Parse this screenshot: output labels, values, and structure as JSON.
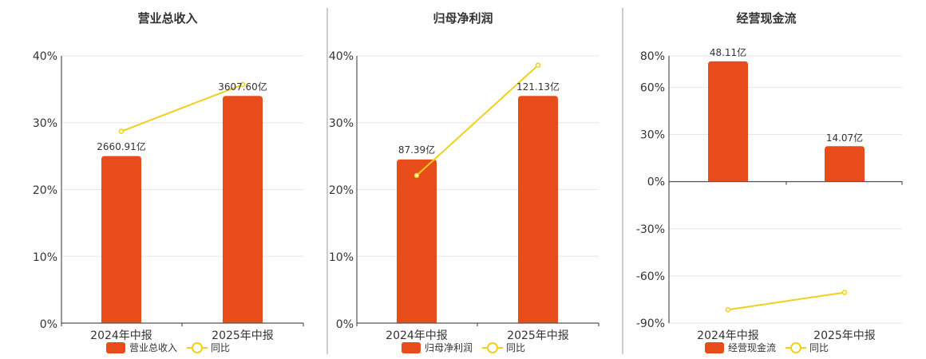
{
  "colors": {
    "bar": "#e84c1a",
    "line": "#f0d01c"
  },
  "chart_data": [
    {
      "type": "bar",
      "title": "营业总收入",
      "categories": [
        "2024年中报",
        "2025年中报"
      ],
      "series": [
        {
          "name": "营业总收入",
          "type": "bar",
          "values": [
            25.0,
            34.0
          ],
          "labels": [
            "2660.91亿",
            "3607.60亿"
          ]
        },
        {
          "name": "同比",
          "type": "line",
          "values": [
            28.7,
            35.7
          ]
        }
      ],
      "yticks": [
        "40%",
        "30%",
        "20%",
        "10%",
        "0%"
      ],
      "ylim": [
        0,
        40
      ]
    },
    {
      "type": "bar",
      "title": "归母净利润",
      "categories": [
        "2024年中报",
        "2025年中报"
      ],
      "series": [
        {
          "name": "归母净利润",
          "type": "bar",
          "values": [
            24.5,
            34.0
          ],
          "labels": [
            "87.39亿",
            "121.13亿"
          ]
        },
        {
          "name": "同比",
          "type": "line",
          "values": [
            22.1,
            38.6
          ]
        }
      ],
      "yticks": [
        "40%",
        "30%",
        "20%",
        "10%",
        "0%"
      ],
      "ylim": [
        0,
        40
      ]
    },
    {
      "type": "bar",
      "title": "经营现金流",
      "categories": [
        "2024年中报",
        "2025年中报"
      ],
      "series": [
        {
          "name": "经营现金流",
          "type": "bar",
          "values": [
            76.5,
            22.5
          ],
          "labels": [
            "48.11亿",
            "14.07亿"
          ]
        },
        {
          "name": "同比",
          "type": "line",
          "values": [
            -81.5,
            -70.5
          ]
        }
      ],
      "yticks": [
        "80%",
        "60%",
        "30%",
        "0%",
        "-30%",
        "-60%",
        "-90%"
      ],
      "ytick_values": [
        80,
        60,
        30,
        0,
        -30,
        -60,
        -90
      ],
      "ylim": [
        -90,
        80
      ]
    }
  ]
}
